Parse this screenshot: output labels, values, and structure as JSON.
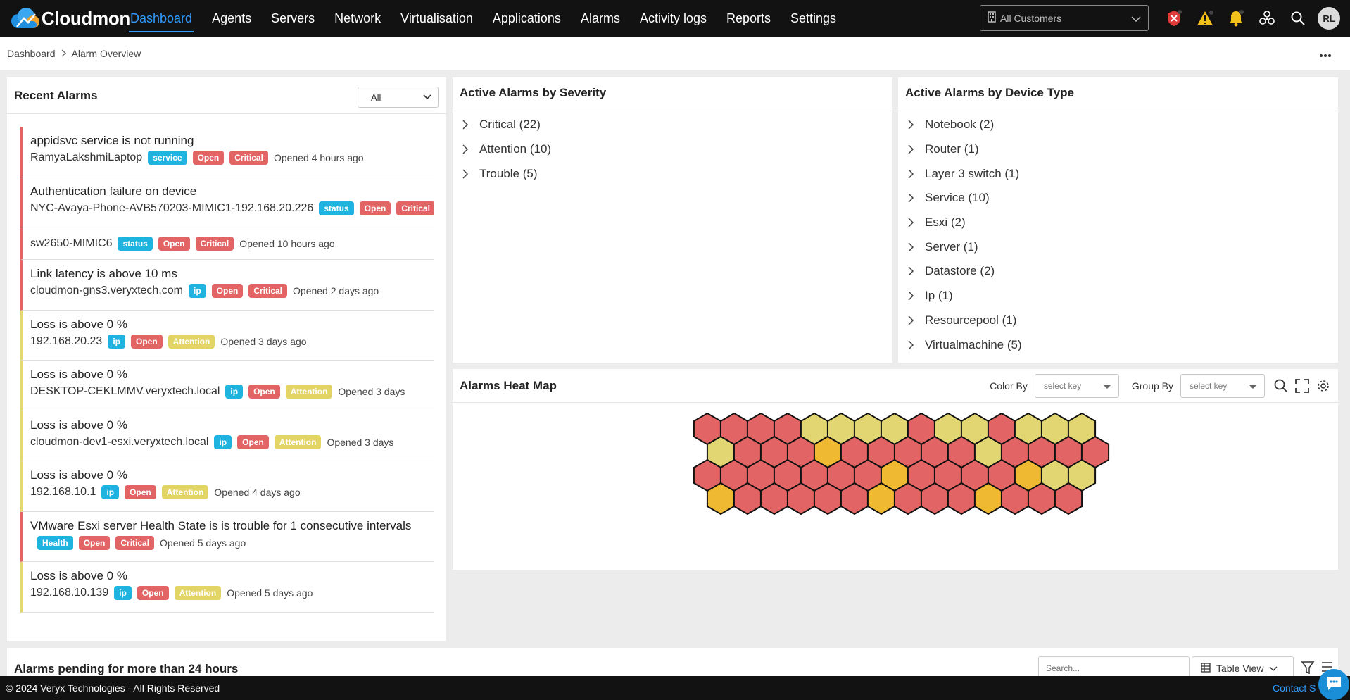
{
  "app": {
    "name": "Cloudmon"
  },
  "nav": {
    "items": [
      {
        "label": "Dashboard",
        "active": true
      },
      {
        "label": "Agents"
      },
      {
        "label": "Servers"
      },
      {
        "label": "Network"
      },
      {
        "label": "Virtualisation"
      },
      {
        "label": "Applications"
      },
      {
        "label": "Alarms"
      },
      {
        "label": "Activity logs"
      },
      {
        "label": "Reports"
      },
      {
        "label": "Settings"
      }
    ],
    "customer_select": "All Customers",
    "user_initials": "RL"
  },
  "breadcrumb": {
    "root": "Dashboard",
    "current": "Alarm Overview"
  },
  "recent_alarms": {
    "title": "Recent Alarms",
    "filter_value": "All",
    "items": [
      {
        "title": "appidsvc service is not running",
        "device": "RamyaLakshmiLaptop",
        "type": "service",
        "state": "Open",
        "severity": "Critical",
        "time": "Opened 4 hours ago"
      },
      {
        "title": "Authentication failure on device",
        "device": "NYC-Avaya-Phone-AVB570203-MIMIC1-192.168.20.226",
        "type": "status",
        "state": "Open",
        "severity": "Critical",
        "time": ""
      },
      {
        "title": "",
        "device": "sw2650-MIMIC6",
        "type": "status",
        "state": "Open",
        "severity": "Critical",
        "time": "Opened 10 hours ago"
      },
      {
        "title": "Link latency is above 10 ms",
        "device": "cloudmon-gns3.veryxtech.com",
        "type": "ip",
        "state": "Open",
        "severity": "Critical",
        "time": "Opened 2 days ago"
      },
      {
        "title": "Loss is above 0 %",
        "device": "192.168.20.23",
        "type": "ip",
        "state": "Open",
        "severity": "Attention",
        "time": "Opened 3 days ago"
      },
      {
        "title": "Loss is above 0 %",
        "device": "DESKTOP-CEKLMMV.veryxtech.local",
        "type": "ip",
        "state": "Open",
        "severity": "Attention",
        "time": "Opened 3 days"
      },
      {
        "title": "Loss is above 0 %",
        "device": "cloudmon-dev1-esxi.veryxtech.local",
        "type": "ip",
        "state": "Open",
        "severity": "Attention",
        "time": "Opened 3 days"
      },
      {
        "title": "Loss is above 0 %",
        "device": "192.168.10.1",
        "type": "ip",
        "state": "Open",
        "severity": "Attention",
        "time": "Opened 4 days ago"
      },
      {
        "title": "VMware Esxi server Health State is is trouble for 1 consecutive intervals",
        "device": "",
        "type": "Health",
        "state": "Open",
        "severity": "Critical",
        "time": "Opened 5 days ago"
      },
      {
        "title": "Loss is above 0 %",
        "device": "192.168.10.139",
        "type": "ip",
        "state": "Open",
        "severity": "Attention",
        "time": "Opened 5 days ago"
      }
    ]
  },
  "severity": {
    "title": "Active Alarms by Severity",
    "items": [
      "Critical (22)",
      "Attention (10)",
      "Trouble (5)"
    ]
  },
  "device_type": {
    "title": "Active Alarms by Device Type",
    "items": [
      "Notebook (2)",
      "Router (1)",
      "Layer 3 switch (1)",
      "Service (10)",
      "Esxi (2)",
      "Server (1)",
      "Datastore (2)",
      "Ip (1)",
      "Resourcepool (1)",
      "Virtualmachine (5)"
    ]
  },
  "heatmap": {
    "title": "Alarms Heat Map",
    "color_by_label": "Color By",
    "color_by_placeholder": "select key",
    "group_by_label": "Group By",
    "group_by_placeholder": "select key",
    "colors": {
      "critical": "#e36464",
      "attention": "#e2d672",
      "trouble": "#f0b932"
    },
    "rows": [
      [
        "c",
        "c",
        "c",
        "c",
        "a",
        "a",
        "a",
        "a",
        "c",
        "a",
        "a",
        "c",
        "a",
        "a",
        "a"
      ],
      [
        "a",
        "c",
        "c",
        "c",
        "t",
        "c",
        "c",
        "c",
        "c",
        "c",
        "a",
        "c",
        "c",
        "c",
        "c"
      ],
      [
        "c",
        "c",
        "c",
        "c",
        "c",
        "c",
        "c",
        "t",
        "c",
        "c",
        "c",
        "c",
        "t",
        "a",
        "a"
      ],
      [
        "t",
        "c",
        "c",
        "c",
        "c",
        "c",
        "t",
        "c",
        "c",
        "c",
        "t",
        "c",
        "c",
        "c"
      ]
    ]
  },
  "pending": {
    "title": "Alarms pending for more than 24 hours",
    "search_placeholder": "Search...",
    "view": "Table View"
  },
  "footer": {
    "copyright": "© 2024 Veryx Technologies - All Rights Reserved",
    "contact": "Contact S"
  }
}
